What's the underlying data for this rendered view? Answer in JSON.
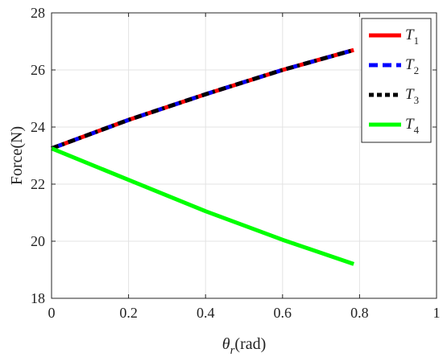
{
  "chart_data": {
    "type": "line",
    "x_axis": {
      "label_symbol": "θ",
      "label_subscript": "r",
      "label_unit": "(rad)",
      "lim": [
        0,
        1
      ],
      "ticks": [
        0,
        0.2,
        0.4,
        0.6,
        0.8,
        1
      ],
      "tick_labels": [
        "0",
        "0.2",
        "0.4",
        "0.6",
        "0.8",
        "1"
      ]
    },
    "y_axis": {
      "label": "Force(N)",
      "lim": [
        18,
        28
      ],
      "ticks": [
        18,
        20,
        22,
        24,
        26,
        28
      ],
      "tick_labels": [
        "18",
        "20",
        "22",
        "24",
        "26",
        "28"
      ]
    },
    "grid": true,
    "legend_position": "top-right",
    "series": [
      {
        "name": "T1",
        "name_main": "T",
        "name_sub": "1",
        "color": "#ff0000",
        "style": "solid",
        "x": [
          0,
          0.2,
          0.4,
          0.6,
          0.785
        ],
        "y": [
          23.25,
          24.25,
          25.15,
          26.0,
          26.7
        ]
      },
      {
        "name": "T2",
        "name_main": "T",
        "name_sub": "2",
        "color": "#0000ff",
        "style": "dashed",
        "x": [
          0,
          0.2,
          0.4,
          0.6,
          0.785
        ],
        "y": [
          23.25,
          24.25,
          25.15,
          26.0,
          26.7
        ]
      },
      {
        "name": "T3",
        "name_main": "T",
        "name_sub": "3",
        "color": "#000000",
        "style": "dash-dot",
        "x": [
          0,
          0.2,
          0.4,
          0.6,
          0.785
        ],
        "y": [
          23.25,
          24.25,
          25.15,
          26.0,
          26.7
        ]
      },
      {
        "name": "T4",
        "name_main": "T",
        "name_sub": "4",
        "color": "#00ff00",
        "style": "solid",
        "x": [
          0,
          0.2,
          0.4,
          0.6,
          0.785
        ],
        "y": [
          23.25,
          22.15,
          21.05,
          20.05,
          19.2
        ]
      }
    ]
  }
}
